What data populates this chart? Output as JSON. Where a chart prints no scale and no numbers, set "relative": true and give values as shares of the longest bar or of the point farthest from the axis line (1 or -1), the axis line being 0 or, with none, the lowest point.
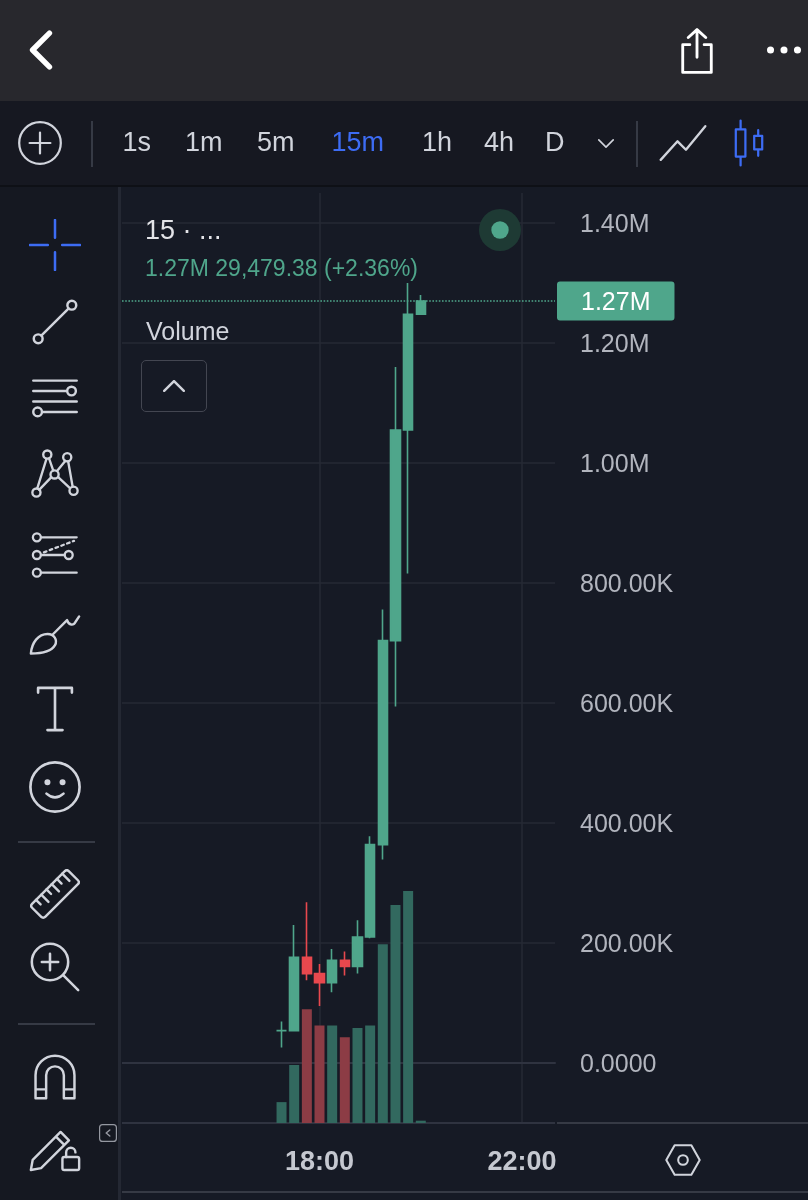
{
  "chart_data": [
    {
      "type": "candlestick",
      "title": "15 · ...",
      "subtitle": "1.27M 29,479.38 (+2.36%)",
      "x": [
        17.25,
        17.5,
        17.75,
        18,
        18.25,
        18.5,
        18.75,
        19,
        19.25,
        19.5,
        19.75,
        20
      ],
      "ohlc": [
        [
          54000,
          69000,
          26000,
          54000
        ],
        [
          54000,
          230000,
          54000,
          176000
        ],
        [
          176000,
          268000,
          138000,
          149000
        ],
        [
          149000,
          165000,
          95000,
          134000
        ],
        [
          134000,
          190000,
          118000,
          171000
        ],
        [
          171000,
          186000,
          146000,
          161000
        ],
        [
          161000,
          238000,
          149000,
          210000
        ],
        [
          210000,
          378000,
          208000,
          364000
        ],
        [
          364000,
          756000,
          339000,
          704000
        ],
        [
          704000,
          1160000,
          594000,
          1055000
        ],
        [
          1055000,
          1300000,
          816000,
          1248000
        ],
        [
          1248000,
          1280000,
          1248000,
          1270000
        ]
      ],
      "colors": [
        "#4fa68b",
        "#4fa68b",
        "#e8484e",
        "#e8484e",
        "#4fa68b",
        "#e8484e",
        "#4fa68b",
        "#4fa68b",
        "#4fa68b",
        "#4fa68b",
        "#4fa68b",
        "#4fa68b"
      ],
      "xlim": [
        14.1,
        22.65
      ],
      "xticks": [
        {
          "value": 18,
          "label": "18:00"
        },
        {
          "value": 22,
          "label": "22:00"
        }
      ],
      "ylim": [
        -100000,
        1450000
      ],
      "yticks": [
        {
          "value": 0,
          "label": "0.0000"
        },
        {
          "value": 200000,
          "label": "200.00K"
        },
        {
          "value": 400000,
          "label": "400.00K"
        },
        {
          "value": 600000,
          "label": "600.00K"
        },
        {
          "value": 800000,
          "label": "800.00K"
        },
        {
          "value": 1000000,
          "label": "1.00M"
        },
        {
          "value": 1200000,
          "label": "1.20M"
        },
        {
          "value": 1400000,
          "label": "1.40M"
        }
      ],
      "ref_lines": [
        {
          "axis": "y",
          "value": 1270000,
          "label": "1.27M",
          "color": "#4fa68b",
          "line_style": "dotted"
        }
      ],
      "grid": true,
      "annotations": [
        "1s",
        "1m",
        "5m",
        "15m",
        "1h",
        "4h",
        "D"
      ]
    },
    {
      "type": "bar",
      "title": "Volume",
      "relative": true,
      "x": [
        17.25,
        17.5,
        17.75,
        18,
        18.25,
        18.5,
        18.75,
        19,
        19.25,
        19.5,
        19.75,
        20
      ],
      "values": [
        0.09,
        0.25,
        0.49,
        0.42,
        0.42,
        0.37,
        0.41,
        0.42,
        0.77,
        0.94,
        1,
        0.01
      ],
      "colors": [
        "#32695f",
        "#32695f",
        "#8c3c45",
        "#8c3c45",
        "#32695f",
        "#8c3c45",
        "#32695f",
        "#32695f",
        "#32695f",
        "#32695f",
        "#32695f",
        "#32695f"
      ],
      "xlim": [
        14.1,
        22.65
      ],
      "tick_labels": false
    }
  ]
}
